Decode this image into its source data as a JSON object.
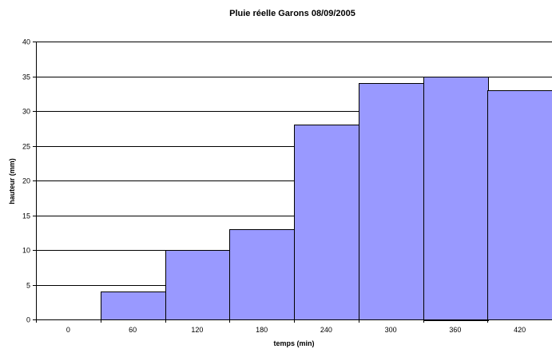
{
  "chart_data": {
    "type": "bar",
    "title": "Pluie réelle Garons 08/09/2005",
    "xlabel": "temps (min)",
    "ylabel": "hauteur (mm)",
    "categories": [
      "0",
      "60",
      "120",
      "180",
      "240",
      "300",
      "360",
      "420"
    ],
    "values": [
      0,
      4,
      10,
      13,
      28,
      34,
      35,
      33
    ],
    "ylim": [
      0,
      40
    ],
    "yticks": [
      0,
      5,
      10,
      15,
      20,
      25,
      30,
      35,
      40
    ],
    "grid": true,
    "bar_color": "#9999ff",
    "gap_width": 0
  }
}
